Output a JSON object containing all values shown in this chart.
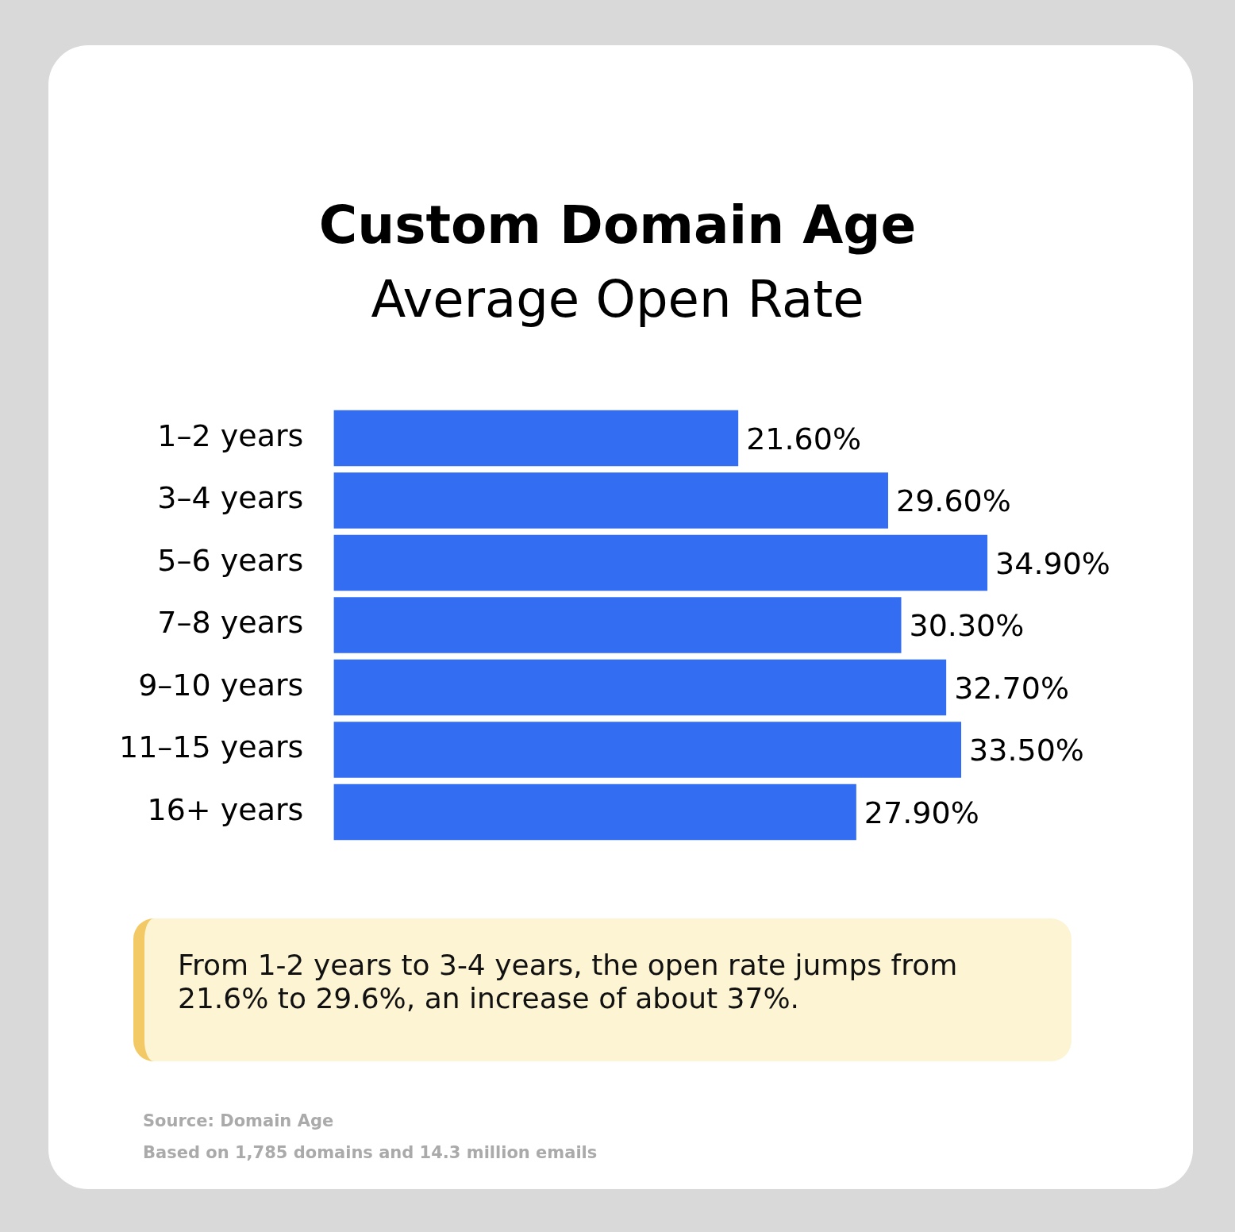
{
  "chart_data": {
    "type": "bar",
    "orientation": "horizontal",
    "title": "Custom Domain Age",
    "subtitle": "Average Open Rate",
    "categories": [
      "1–2 years",
      "3–4 years",
      "5–6 years",
      "7–8 years",
      "9–10 years",
      "11–15 years",
      "16+ years"
    ],
    "values": [
      21.6,
      29.6,
      34.9,
      30.3,
      32.7,
      33.5,
      27.9
    ],
    "value_labels": [
      "21.60%",
      "29.60%",
      "34.90%",
      "30.30%",
      "32.70%",
      "33.50%",
      "27.90%"
    ],
    "color": "#336ef2",
    "annotations": [
      "From 1-2 years to 3-4 years, the open rate jumps from 21.6% to 29.6%, an increase of about 37%.",
      "Source: Domain Age",
      "Based on 1,785 domains and 14.3 million emails"
    ]
  }
}
